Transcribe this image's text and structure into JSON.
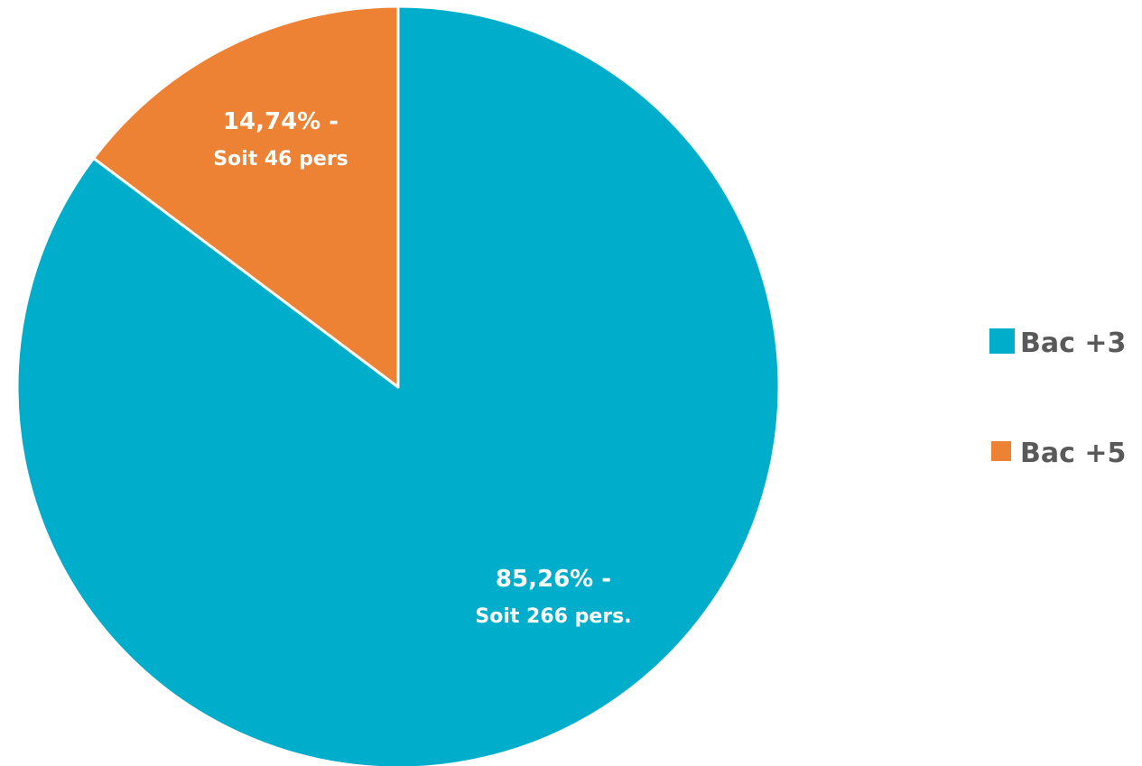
{
  "chart_data": {
    "type": "pie",
    "slices": [
      {
        "name": "Bac +3",
        "value": 85.26,
        "count": 266,
        "color": "#00AECB",
        "label_line1": "85,26% -",
        "label_line2": "Soit 266 pers."
      },
      {
        "name": "Bac +5",
        "value": 14.74,
        "count": 46,
        "color": "#ED8134",
        "label_line1": "14,74% -",
        "label_line2": "Soit 46 pers"
      }
    ],
    "legend": {
      "position": "right",
      "entries": [
        "Bac +3",
        "Bac +5"
      ]
    },
    "start": "top",
    "direction": "clockwise"
  }
}
